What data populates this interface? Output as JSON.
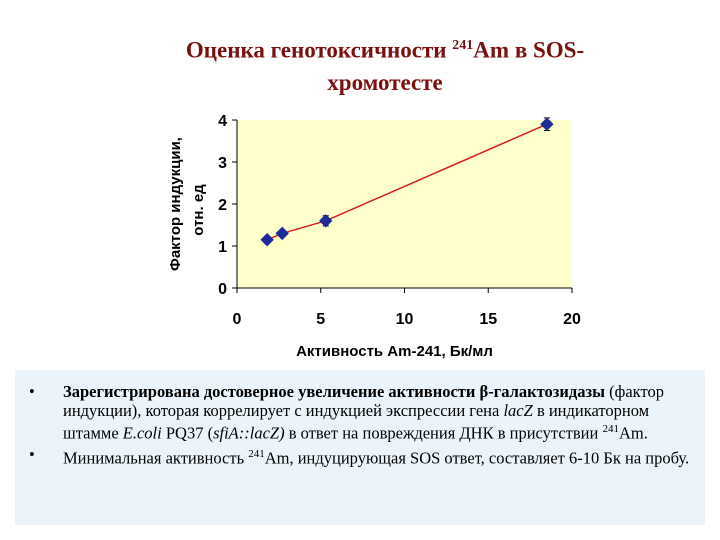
{
  "title": {
    "line1_a": "Оценка генотоксичности ",
    "line1_sup": "241",
    "line1_b": "Am в SOS-",
    "line2": "хромотесте"
  },
  "chart_data": {
    "type": "scatter",
    "ylabel_line1": "Фактор индукции,",
    "ylabel_line2": "отн. ед",
    "xlabel": "Активность Am-241, Бк/мл",
    "xlim": [
      0,
      20
    ],
    "ylim": [
      0,
      4
    ],
    "xticks": [
      "0",
      "5",
      "10",
      "15",
      "20"
    ],
    "yticks": [
      "0",
      "1",
      "2",
      "3",
      "4"
    ],
    "grid": false,
    "trendline": true,
    "colors": {
      "plot_bg": "#ffffcc",
      "marker": "#1f2a99",
      "trend": "#d62020",
      "axis": "#000000"
    },
    "points": [
      {
        "x": 1.8,
        "y": 1.15,
        "err": 0.08
      },
      {
        "x": 2.7,
        "y": 1.3,
        "err": 0.08
      },
      {
        "x": 5.3,
        "y": 1.6,
        "err": 0.12
      },
      {
        "x": 18.5,
        "y": 3.9,
        "err": 0.15
      }
    ]
  },
  "bullets": {
    "b1_bold": "Зарегистрирована достоверное увеличение активности β-галактозидазы",
    "b1_t1": " (фактор индукции), которая коррелирует с индукцией экспрессии гена ",
    "b1_i1": "lacZ",
    "b1_t2": " в индикаторном штамме ",
    "b1_i2": "E.coli",
    "b1_t3": " PQ37 (",
    "b1_i3": "sfiA::lacZ)",
    "b1_t4": " в ответ на повреждения ДНК в присутствии ",
    "b1_sup": "241",
    "b1_t5": "Am.",
    "b2_t1": "Минимальная активность ",
    "b2_sup": "241",
    "b2_t2": "Am, индуцирующая SOS ответ, составляет 6-10 Бк на пробу."
  },
  "bullet_symbol": "•"
}
